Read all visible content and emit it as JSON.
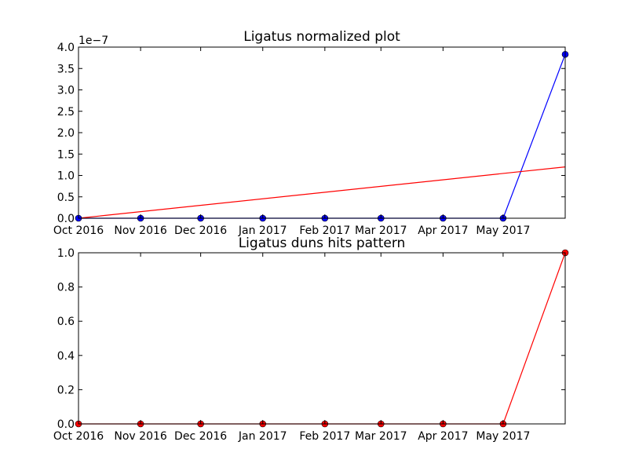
{
  "chart_data": [
    {
      "type": "line",
      "title": "Ligatus normalized plot",
      "xlabel": "",
      "ylabel": "",
      "x_ticks": [
        "Oct 2016",
        "Nov 2016",
        "Dec 2016",
        "Jan 2017",
        "Feb 2017",
        "Mar 2017",
        "Apr 2017",
        "May 2017"
      ],
      "x_tick_dates": [
        "2016-10-01",
        "2016-11-01",
        "2016-12-01",
        "2017-01-01",
        "2017-02-01",
        "2017-03-01",
        "2017-04-01",
        "2017-05-01"
      ],
      "xlim": [
        "2016-10-01",
        "2017-06-01"
      ],
      "y_ticks": [
        "0.0",
        "0.5",
        "1.0",
        "1.5",
        "2.0",
        "2.5",
        "3.0",
        "3.5",
        "4.0"
      ],
      "y_offset_label": "1e−7",
      "ylim": [
        0,
        4e-07
      ],
      "grid": false,
      "series": [
        {
          "color": "#0000ff",
          "marker": "circle",
          "x": [
            "2016-10-01",
            "2016-11-01",
            "2016-12-01",
            "2017-01-01",
            "2017-02-01",
            "2017-03-01",
            "2017-04-01",
            "2017-05-01",
            "2017-06-01"
          ],
          "y": [
            0,
            0,
            0,
            0,
            0,
            0,
            0,
            0,
            3.83e-07
          ]
        },
        {
          "color": "#ff0000",
          "marker": "none",
          "x": [
            "2016-10-01",
            "2017-06-01"
          ],
          "y": [
            0,
            1.2e-07
          ]
        }
      ]
    },
    {
      "type": "line",
      "title": "Ligatus duns hits pattern",
      "xlabel": "",
      "ylabel": "",
      "x_ticks": [
        "Oct 2016",
        "Nov 2016",
        "Dec 2016",
        "Jan 2017",
        "Feb 2017",
        "Mar 2017",
        "Apr 2017",
        "May 2017"
      ],
      "x_tick_dates": [
        "2016-10-01",
        "2016-11-01",
        "2016-12-01",
        "2017-01-01",
        "2017-02-01",
        "2017-03-01",
        "2017-04-01",
        "2017-05-01"
      ],
      "xlim": [
        "2016-10-01",
        "2017-06-01"
      ],
      "y_ticks": [
        "0.0",
        "0.2",
        "0.4",
        "0.6",
        "0.8",
        "1.0"
      ],
      "ylim": [
        0,
        1.0
      ],
      "grid": false,
      "series": [
        {
          "color": "#ff0000",
          "marker": "circle",
          "x": [
            "2016-10-01",
            "2016-11-01",
            "2016-12-01",
            "2017-01-01",
            "2017-02-01",
            "2017-03-01",
            "2017-04-01",
            "2017-05-01",
            "2017-06-01"
          ],
          "y": [
            0,
            0,
            0,
            0,
            0,
            0,
            0,
            0,
            1.0
          ]
        }
      ]
    }
  ]
}
